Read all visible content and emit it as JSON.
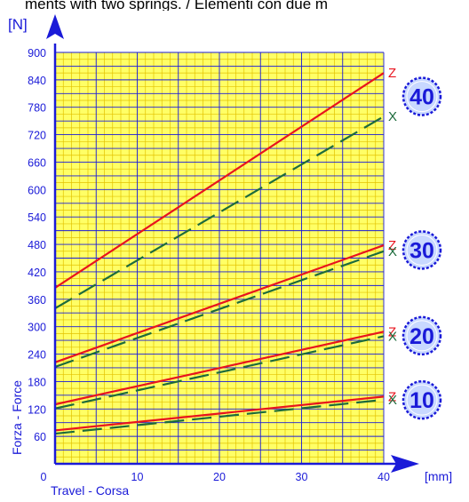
{
  "header_text": "ments with two springs. / Elementi con due m",
  "chart_data": {
    "type": "line",
    "title": "",
    "xlabel": "Travel - Corsa",
    "ylabel": "Forza - Force",
    "x_unit": "[mm]",
    "y_unit": "[N]",
    "xlim": [
      0,
      40
    ],
    "ylim": [
      0,
      900
    ],
    "x_ticks": [
      0,
      10,
      20,
      30,
      40
    ],
    "y_ticks": [
      60,
      120,
      180,
      240,
      300,
      360,
      420,
      480,
      540,
      600,
      660,
      720,
      780,
      840,
      900
    ],
    "grid": true,
    "colors": {
      "background": "#ffff66",
      "minor_grid": "#e3c200",
      "major_grid": "#1a1ad8",
      "axis": "#1a1ad8",
      "tick_text": "#1a1ad8",
      "z_line": "#e8141e",
      "x_line": "#1d6b3c",
      "badge_fill": "#c8d8ff",
      "badge_stroke": "#1a1ad8"
    },
    "groups": [
      {
        "label": "40",
        "series": [
          {
            "name": "Z",
            "x": [
              0,
              40
            ],
            "y": [
              385,
              855
            ]
          },
          {
            "name": "X",
            "x": [
              0,
              40
            ],
            "y": [
              340,
              760
            ]
          }
        ]
      },
      {
        "label": "30",
        "series": [
          {
            "name": "Z",
            "x": [
              0,
              40
            ],
            "y": [
              222,
              478
            ]
          },
          {
            "name": "X",
            "x": [
              0,
              40
            ],
            "y": [
              212,
              465
            ]
          }
        ]
      },
      {
        "label": "20",
        "series": [
          {
            "name": "Z",
            "x": [
              0,
              40
            ],
            "y": [
              130,
              289
            ]
          },
          {
            "name": "X",
            "x": [
              0,
              40
            ],
            "y": [
              121,
              279
            ]
          }
        ]
      },
      {
        "label": "10",
        "series": [
          {
            "name": "Z",
            "x": [
              0,
              40
            ],
            "y": [
              73,
              147
            ]
          },
          {
            "name": "X",
            "x": [
              0,
              40
            ],
            "y": [
              66,
              140
            ]
          }
        ]
      }
    ]
  }
}
